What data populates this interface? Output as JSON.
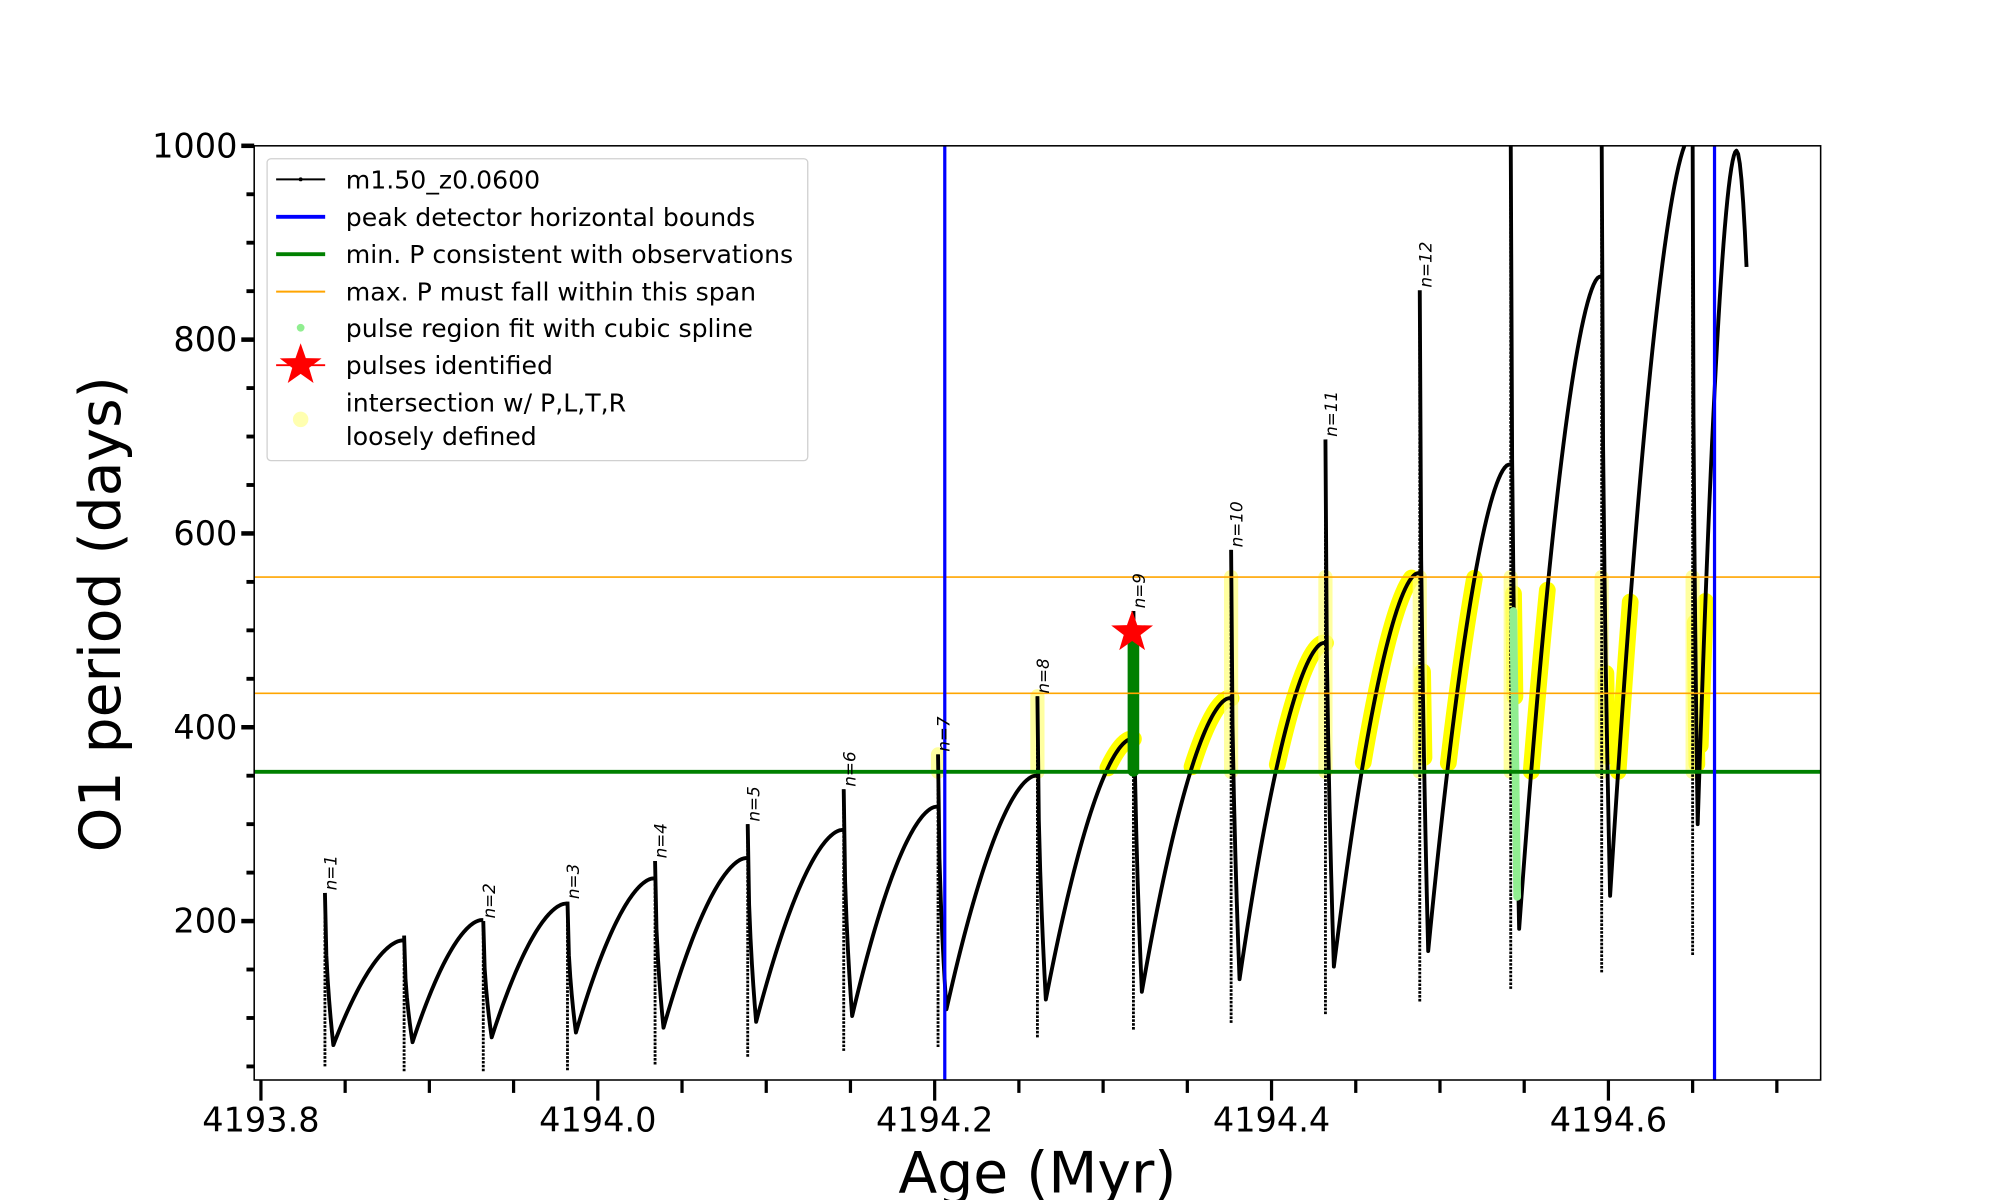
{
  "chart_data": {
    "type": "line",
    "xlabel": "Age (Myr)",
    "ylabel": "O1 period (days)",
    "xlim": [
      4193.796,
      4194.726
    ],
    "ylim": [
      36,
      1000
    ],
    "xticks": [
      "4193.8",
      "4194.0",
      "4194.2",
      "4194.4",
      "4194.6"
    ],
    "xtick_values": [
      4193.8,
      4194.0,
      4194.2,
      4194.4,
      4194.6
    ],
    "yticks": [
      "200",
      "400",
      "600",
      "800",
      "1000"
    ],
    "ytick_values": [
      200,
      400,
      600,
      800,
      1000
    ],
    "grid": false,
    "legend_position": "top-left",
    "legend": [
      {
        "label": "m1.50_z0.0600",
        "color": "#000000",
        "kind": "line-dot"
      },
      {
        "label": "peak detector horizontal bounds",
        "color": "#0000ff",
        "kind": "line"
      },
      {
        "label": "min. P consistent with observations",
        "color": "#008000",
        "kind": "line"
      },
      {
        "label": "max. P must fall within this span",
        "color": "#ffa500",
        "kind": "thin-line"
      },
      {
        "label": "pulse region fit with cubic spline",
        "color": "#90ee90",
        "kind": "dot"
      },
      {
        "label": "pulses identified",
        "color": "#ff0000",
        "kind": "star"
      },
      {
        "label": "intersection w/ P,L,T,R",
        "label2": "loosely defined",
        "color": "#ffffb0",
        "kind": "dot"
      }
    ],
    "vertical_bounds": [
      4194.206,
      4194.663
    ],
    "min_period": 354,
    "max_period_span": [
      435,
      555
    ],
    "highlight_start_age": 4194.298,
    "pulses": [
      {
        "label": "n=1",
        "age": 4193.838,
        "top": 229,
        "bottom": 50,
        "min_after": 72,
        "peak_before": null
      },
      {
        "label": null,
        "age": 4193.885,
        "top": 185,
        "bottom": 45,
        "min_after": 75,
        "peak_before": 180
      },
      {
        "label": "n=2",
        "age": 4193.932,
        "top": 200,
        "bottom": 45,
        "min_after": 80,
        "peak_before": 201
      },
      {
        "label": "n=3",
        "age": 4193.982,
        "top": 220,
        "bottom": 46,
        "min_after": 85,
        "peak_before": 218
      },
      {
        "label": "n=4",
        "age": 4194.034,
        "top": 262,
        "bottom": 52,
        "min_after": 90,
        "peak_before": 244
      },
      {
        "label": "n=5",
        "age": 4194.089,
        "top": 300,
        "bottom": 60,
        "min_after": 96,
        "peak_before": 265
      },
      {
        "label": "n=6",
        "age": 4194.146,
        "top": 336,
        "bottom": 66,
        "min_after": 102,
        "peak_before": 294
      },
      {
        "label": "n=7",
        "age": 4194.202,
        "top": 372,
        "bottom": 70,
        "min_after": 109,
        "peak_before": 318
      },
      {
        "label": "n=8",
        "age": 4194.261,
        "top": 432,
        "bottom": 80,
        "min_after": 119,
        "peak_before": 350
      },
      {
        "label": "n=9",
        "age": 4194.318,
        "top": 520,
        "bottom": 88,
        "min_after": 127,
        "peak_before": 388
      },
      {
        "label": "n=10",
        "age": 4194.376,
        "top": 583,
        "bottom": 95,
        "min_after": 140,
        "peak_before": 430
      },
      {
        "label": "n=11",
        "age": 4194.432,
        "top": 697,
        "bottom": 104,
        "min_after": 153,
        "peak_before": 487
      },
      {
        "label": "n=12",
        "age": 4194.488,
        "top": 851,
        "bottom": 117,
        "min_after": 169,
        "peak_before": 559
      },
      {
        "label": null,
        "age": 4194.542,
        "top": 1010,
        "bottom": 130,
        "min_after": 192,
        "peak_before": 671
      },
      {
        "label": null,
        "age": 4194.596,
        "top": 1010,
        "bottom": 147,
        "min_after": 226,
        "peak_before": 865
      },
      {
        "label": null,
        "age": 4194.65,
        "top": 1010,
        "bottom": 165,
        "min_after": 300,
        "peak_before": 1010
      }
    ],
    "final_segment": {
      "peak_age": 4194.676,
      "peak": 995,
      "end_age": 4194.682,
      "end": 875
    },
    "identified_pulse": {
      "label": "n=9",
      "age": 4194.318,
      "period": 498,
      "fit_range": [
        355,
        500
      ]
    },
    "spline_fit_pulse": {
      "age": 4194.542,
      "range": [
        225,
        520
      ]
    }
  }
}
